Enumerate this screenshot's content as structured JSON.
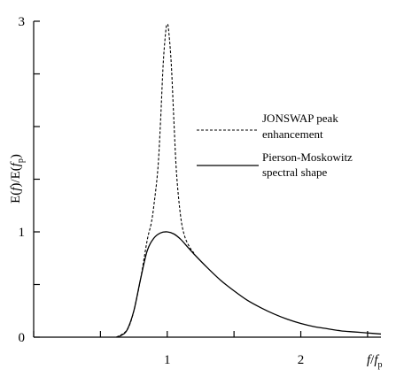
{
  "chart_data": {
    "type": "line",
    "ylabel": "E(f)/E(f_p)",
    "xlabel": "f/f_p",
    "xlim": [
      0,
      2.6
    ],
    "ylim": [
      0,
      3
    ],
    "x_ticks": [
      0,
      0.5,
      1,
      1.5,
      2,
      2.5
    ],
    "x_tick_labels": [
      "",
      "",
      "1",
      "",
      "2",
      ""
    ],
    "y_ticks": [
      0,
      0.5,
      1,
      1.5,
      2,
      2.5,
      3
    ],
    "y_tick_labels": [
      "0",
      "",
      "1",
      "",
      "",
      "",
      "3"
    ],
    "grid": false,
    "legend_position": "right",
    "series": [
      {
        "name": "JONSWAP peak enhancement",
        "style": "dashed",
        "x": [
          0.62,
          0.7,
          0.75,
          0.8,
          0.85,
          0.88,
          0.9,
          0.93,
          0.95,
          0.97,
          0.99,
          1.0,
          1.01,
          1.03,
          1.05,
          1.07,
          1.1,
          1.13,
          1.17,
          1.2
        ],
        "y": [
          0.0,
          0.07,
          0.25,
          0.55,
          0.92,
          1.08,
          1.25,
          1.6,
          2.05,
          2.6,
          2.92,
          2.97,
          2.92,
          2.6,
          2.05,
          1.55,
          1.15,
          0.96,
          0.85,
          0.8
        ]
      },
      {
        "name": "Pierson-Moskowitz spectral shape",
        "style": "solid",
        "x": [
          0.62,
          0.66,
          0.7,
          0.75,
          0.8,
          0.85,
          0.9,
          0.95,
          1.0,
          1.05,
          1.1,
          1.15,
          1.2,
          1.3,
          1.4,
          1.5,
          1.6,
          1.7,
          1.8,
          1.9,
          2.0,
          2.1,
          2.2,
          2.3,
          2.4,
          2.5,
          2.6
        ],
        "y": [
          0.0,
          0.02,
          0.07,
          0.25,
          0.55,
          0.82,
          0.94,
          0.99,
          1.0,
          0.98,
          0.93,
          0.86,
          0.79,
          0.66,
          0.54,
          0.44,
          0.35,
          0.28,
          0.22,
          0.17,
          0.13,
          0.1,
          0.08,
          0.06,
          0.05,
          0.04,
          0.03
        ]
      }
    ]
  }
}
